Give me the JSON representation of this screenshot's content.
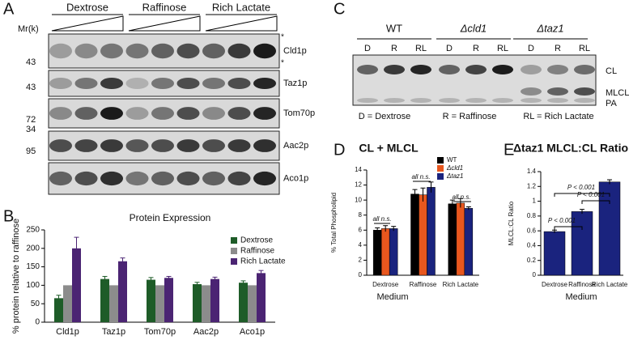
{
  "panel_labels": [
    "A",
    "B",
    "C",
    "D",
    "E"
  ],
  "blot_a": {
    "conditions": [
      "Dextrose",
      "Raffinose",
      "Rich Lactate"
    ],
    "mr_label": "Mr(k)",
    "markers": [
      43,
      43,
      72,
      34,
      95
    ],
    "proteins": [
      "Cld1p",
      "Taz1p",
      "Tom70p",
      "Aac2p",
      "Aco1p"
    ],
    "asterisks": [
      "*",
      "*"
    ]
  },
  "blot_c": {
    "strains": [
      "WT",
      "Δcld1",
      "Δtaz1"
    ],
    "lanes": [
      "D",
      "R",
      "RL",
      "D",
      "R",
      "RL",
      "D",
      "R",
      "RL"
    ],
    "bands": [
      "CL",
      "MLCL",
      "PA"
    ],
    "key": [
      "D = Dextrose",
      "R = Raffinose",
      "RL = Rich Lactate"
    ]
  },
  "chart_data": [
    {
      "type": "bar",
      "title": "Protein Expression",
      "y_label": "% protein relative to raffinose",
      "categories": [
        "Cld1p",
        "Taz1p",
        "Tom70p",
        "Aac2p",
        "Aco1p"
      ],
      "series": [
        {
          "name": "Dextrose",
          "color": "#1e5c28",
          "values": [
            65,
            117,
            115,
            103,
            107
          ],
          "errors": [
            8,
            7,
            6,
            5,
            5
          ]
        },
        {
          "name": "Raffinose",
          "color": "#8c8c8c",
          "values": [
            100,
            100,
            100,
            100,
            100
          ]
        },
        {
          "name": "Rich Lactate",
          "color": "#4b2473",
          "values": [
            200,
            165,
            120,
            117,
            133
          ],
          "errors": [
            30,
            9,
            4,
            5,
            7
          ]
        }
      ],
      "ylim": [
        0,
        250
      ],
      "yticks": [
        0,
        50,
        100,
        150,
        200,
        250
      ],
      "legend": "upper right"
    },
    {
      "type": "bar",
      "title": "CL + MLCL",
      "y_label": "% Total Phospholipid",
      "x_label": "Medium",
      "categories": [
        "Dextrose",
        "Raffinose",
        "Rich Lactate"
      ],
      "series": [
        {
          "name": "WT",
          "color": "#000000",
          "values": [
            6.0,
            10.8,
            9.5
          ],
          "errors": [
            0.3,
            0.6,
            0.5
          ]
        },
        {
          "name": "Δcld1",
          "color": "#e8571e",
          "values": [
            6.2,
            10.7,
            9.6
          ],
          "errors": [
            0.4,
            0.9,
            0.6
          ]
        },
        {
          "name": "Δtaz1",
          "color": "#1a237e",
          "values": [
            6.2,
            11.7,
            8.9
          ],
          "errors": [
            0.3,
            0.7,
            0.2
          ]
        }
      ],
      "annotations": [
        "all n.s.",
        "all n.s.",
        "all n.s."
      ],
      "ylim": [
        0,
        14
      ],
      "yticks": [
        0,
        2,
        4,
        6,
        8,
        10,
        12,
        14
      ],
      "legend": "upper right"
    },
    {
      "type": "bar",
      "title": "Δtaz1 MLCL:CL Ratio",
      "y_label": "MLCL:CL Ratio",
      "x_label": "Medium",
      "categories": [
        "Dextrose",
        "Raffinose",
        "Rich Lactate"
      ],
      "color": "#1a237e",
      "values": [
        0.59,
        0.86,
        1.26
      ],
      "errors": [
        0.02,
        0.03,
        0.03
      ],
      "annotations": [
        "P < 0.001",
        "P < 0.001",
        "P < 0.001"
      ],
      "ylim": [
        0,
        1.4
      ],
      "yticks": [
        0,
        0.2,
        0.4,
        0.6,
        0.8,
        1,
        1.2,
        1.4
      ]
    }
  ]
}
